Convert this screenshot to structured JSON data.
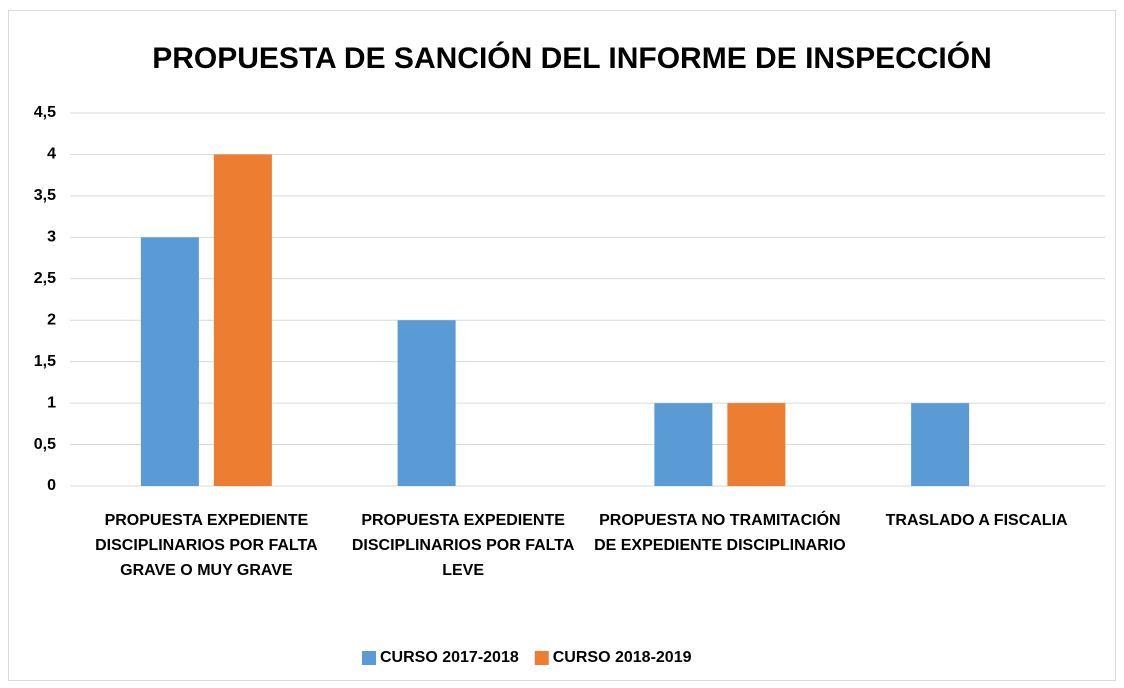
{
  "chart_data": {
    "type": "bar",
    "title": "PROPUESTA DE SANCIÓN DEL INFORME DE INSPECCIÓN",
    "categories": [
      "PROPUESTA EXPEDIENTE DISCIPLINARIOS POR FALTA GRAVE O MUY GRAVE",
      "PROPUESTA EXPEDIENTE DISCIPLINARIOS POR FALTA LEVE",
      "PROPUESTA NO TRAMITACIÓN DE EXPEDIENTE DISCIPLINARIO",
      "TRASLADO A FISCALIA"
    ],
    "series": [
      {
        "name": "CURSO 2017-2018",
        "color": "#5b9bd5",
        "values": [
          3,
          2,
          1,
          1
        ]
      },
      {
        "name": "CURSO 2018-2019",
        "color": "#ed7d31",
        "values": [
          4,
          null,
          1,
          null
        ]
      }
    ],
    "ylim": [
      0,
      4.5
    ],
    "yticks": [
      0,
      {
        "value": 0.5,
        "label": "0,5"
      },
      1,
      {
        "value": 1.5,
        "label": "1,5"
      },
      2,
      {
        "value": 2.5,
        "label": "2,5"
      },
      3,
      {
        "value": 3.5,
        "label": "3,5"
      },
      4,
      {
        "value": 4.5,
        "label": "4,5"
      }
    ],
    "grid": true,
    "legend": "bottom"
  }
}
